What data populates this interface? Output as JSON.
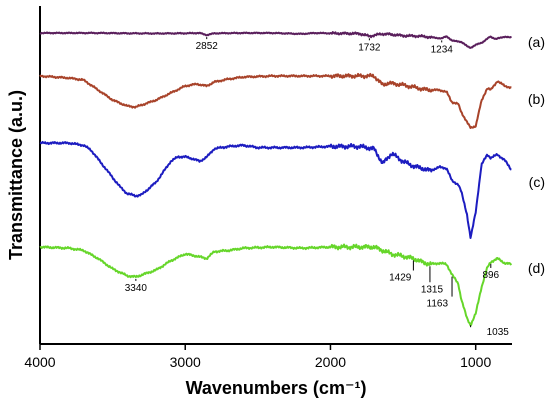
{
  "chart_data": {
    "type": "line",
    "title": "",
    "xlabel": "Wavenumbers (cm⁻¹)",
    "ylabel": "Transmittance (a.u.)",
    "xlim": [
      4000,
      750
    ],
    "x_reversed": true,
    "x_ticks": [
      4000,
      3000,
      2000,
      1000
    ],
    "y_ticks": [],
    "grid": false,
    "legend": "none",
    "colors": {
      "a": "#5a1f5c",
      "b": "#a8432a",
      "c": "#1c1cc0",
      "d": "#66d62a"
    },
    "series": [
      {
        "name": "(a)",
        "color": "#5a1f5c",
        "x": [
          4000,
          3800,
          3600,
          3400,
          3200,
          3000,
          2900,
          2852,
          2800,
          2600,
          2400,
          2200,
          2100,
          2000,
          1800,
          1732,
          1650,
          1600,
          1500,
          1420,
          1370,
          1315,
          1234,
          1200,
          1160,
          1100,
          1060,
          1035,
          1000,
          950,
          900,
          860,
          800,
          750
        ],
        "values": [
          0.0,
          0.0,
          0.0,
          0.05,
          0.08,
          0.05,
          0.0,
          0.35,
          0.05,
          0.0,
          0.0,
          0.15,
          0.0,
          0.05,
          0.1,
          0.55,
          0.15,
          0.2,
          0.45,
          0.5,
          0.55,
          0.7,
          0.9,
          0.55,
          1.3,
          1.45,
          2.2,
          2.45,
          2.0,
          1.5,
          0.6,
          1.0,
          0.6,
          0.8
        ]
      },
      {
        "name": "(b)",
        "color": "#a8432a",
        "x": [
          4000,
          3800,
          3700,
          3600,
          3500,
          3400,
          3340,
          3200,
          3100,
          3000,
          2920,
          2852,
          2800,
          2700,
          2600,
          2400,
          2200,
          2000,
          1800,
          1700,
          1640,
          1600,
          1500,
          1430,
          1370,
          1315,
          1250,
          1200,
          1165,
          1120,
          1100,
          1060,
          1035,
          1000,
          960,
          920,
          896,
          850,
          800,
          750
        ],
        "values": [
          0.0,
          0.2,
          0.4,
          1.4,
          2.4,
          3.0,
          3.1,
          2.4,
          1.7,
          1.0,
          0.8,
          1.0,
          0.6,
          0.3,
          0.1,
          0.0,
          0.0,
          0.0,
          0.0,
          0.0,
          0.9,
          0.7,
          0.9,
          1.1,
          1.3,
          1.4,
          1.4,
          1.6,
          2.6,
          2.8,
          3.6,
          4.6,
          5.2,
          5.0,
          2.5,
          1.2,
          1.4,
          0.5,
          1.0,
          1.2
        ]
      },
      {
        "name": "(c)",
        "color": "#1c1cc0",
        "x": [
          4000,
          3800,
          3700,
          3650,
          3600,
          3550,
          3500,
          3450,
          3400,
          3340,
          3300,
          3200,
          3100,
          3050,
          3000,
          2940,
          2900,
          2850,
          2800,
          2700,
          2600,
          2500,
          2400,
          2200,
          2000,
          1800,
          1700,
          1640,
          1580,
          1500,
          1430,
          1370,
          1315,
          1250,
          1200,
          1163,
          1120,
          1100,
          1060,
          1035,
          1000,
          960,
          920,
          896,
          850,
          800,
          750
        ],
        "values": [
          0.0,
          0.0,
          0.2,
          0.6,
          1.4,
          2.2,
          3.0,
          3.8,
          4.4,
          4.6,
          4.5,
          3.4,
          1.6,
          1.2,
          1.2,
          1.4,
          1.6,
          1.2,
          0.5,
          0.3,
          0.2,
          0.4,
          0.4,
          0.4,
          0.3,
          0.3,
          0.5,
          1.8,
          0.9,
          1.6,
          2.0,
          2.2,
          2.4,
          2.1,
          2.2,
          3.3,
          3.6,
          4.2,
          6.2,
          8.3,
          6.0,
          1.9,
          1.0,
          1.3,
          1.0,
          1.5,
          2.4
        ]
      },
      {
        "name": "(d)",
        "color": "#66d62a",
        "x": [
          4000,
          3800,
          3700,
          3600,
          3500,
          3400,
          3340,
          3200,
          3100,
          3000,
          2920,
          2852,
          2800,
          2700,
          2600,
          2400,
          2200,
          2000,
          1800,
          1700,
          1640,
          1580,
          1500,
          1429,
          1370,
          1315,
          1250,
          1200,
          1163,
          1120,
          1100,
          1060,
          1035,
          1000,
          960,
          920,
          896,
          850,
          800,
          750
        ],
        "values": [
          0.0,
          0.1,
          0.3,
          1.0,
          1.9,
          2.5,
          2.6,
          2.0,
          1.2,
          0.6,
          0.8,
          1.0,
          0.4,
          0.3,
          0.1,
          0.0,
          0.1,
          0.0,
          0.0,
          0.0,
          0.3,
          0.6,
          0.8,
          1.0,
          1.3,
          1.5,
          1.4,
          1.5,
          2.4,
          3.2,
          4.5,
          6.2,
          6.8,
          5.8,
          3.5,
          1.8,
          1.3,
          1.0,
          1.4,
          1.5
        ]
      }
    ],
    "annotations": [
      {
        "series": "(a)",
        "x": 2852,
        "label": "2852"
      },
      {
        "series": "(a)",
        "x": 1732,
        "label": "1732"
      },
      {
        "series": "(a)",
        "x": 1234,
        "label": "1234"
      },
      {
        "series": "(d)",
        "x": 3340,
        "label": "3340"
      },
      {
        "series": "(d)",
        "x": 1429,
        "label": "1429"
      },
      {
        "series": "(d)",
        "x": 1315,
        "label": "1315"
      },
      {
        "series": "(d)",
        "x": 1163,
        "label": "1163"
      },
      {
        "series": "(d)",
        "x": 896,
        "label": "896"
      },
      {
        "series": "(d)",
        "x": 1035,
        "label": "1035"
      }
    ]
  }
}
